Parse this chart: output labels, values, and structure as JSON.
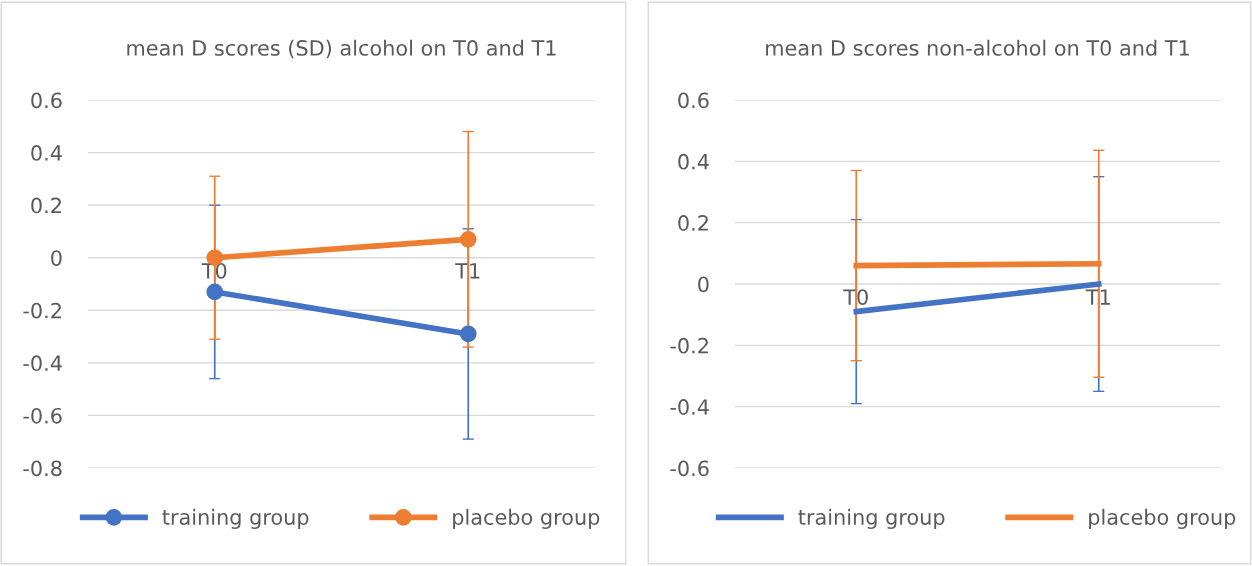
{
  "chart_data": [
    {
      "type": "line",
      "title": "mean D scores (SD) alcohol on T0 and T1",
      "categories": [
        "T0",
        "T1"
      ],
      "ylim": [
        -0.8,
        0.6
      ],
      "yticks": [
        -0.8,
        -0.6,
        -0.4,
        -0.2,
        0,
        0.2,
        0.4,
        0.6
      ],
      "grid": "y",
      "legend": "bottom",
      "marker": "circle",
      "series": [
        {
          "name": "training group",
          "color": "#4472c4",
          "values": [
            -0.13,
            -0.29
          ],
          "errors": [
            0.33,
            0.4
          ]
        },
        {
          "name": "placebo group",
          "color": "#ed7d31",
          "values": [
            0,
            0.07
          ],
          "errors": [
            0.31,
            0.41
          ]
        }
      ]
    },
    {
      "type": "line",
      "title": "mean D scores non-alcohol on T0 and T1",
      "categories": [
        "T0",
        "T1"
      ],
      "ylim": [
        -0.6,
        0.6
      ],
      "yticks": [
        -0.6,
        -0.4,
        -0.2,
        0,
        0.2,
        0.4,
        0.6
      ],
      "grid": "y",
      "legend": "bottom",
      "series": [
        {
          "name": "training group",
          "color": "#4472c4",
          "values": [
            -0.09,
            0
          ],
          "errors": [
            0.3,
            0.35
          ]
        },
        {
          "name": "placebo group",
          "color": "#ed7d31",
          "values": [
            0.06,
            0.066
          ],
          "errors": [
            0.31,
            0.37
          ]
        }
      ]
    }
  ]
}
